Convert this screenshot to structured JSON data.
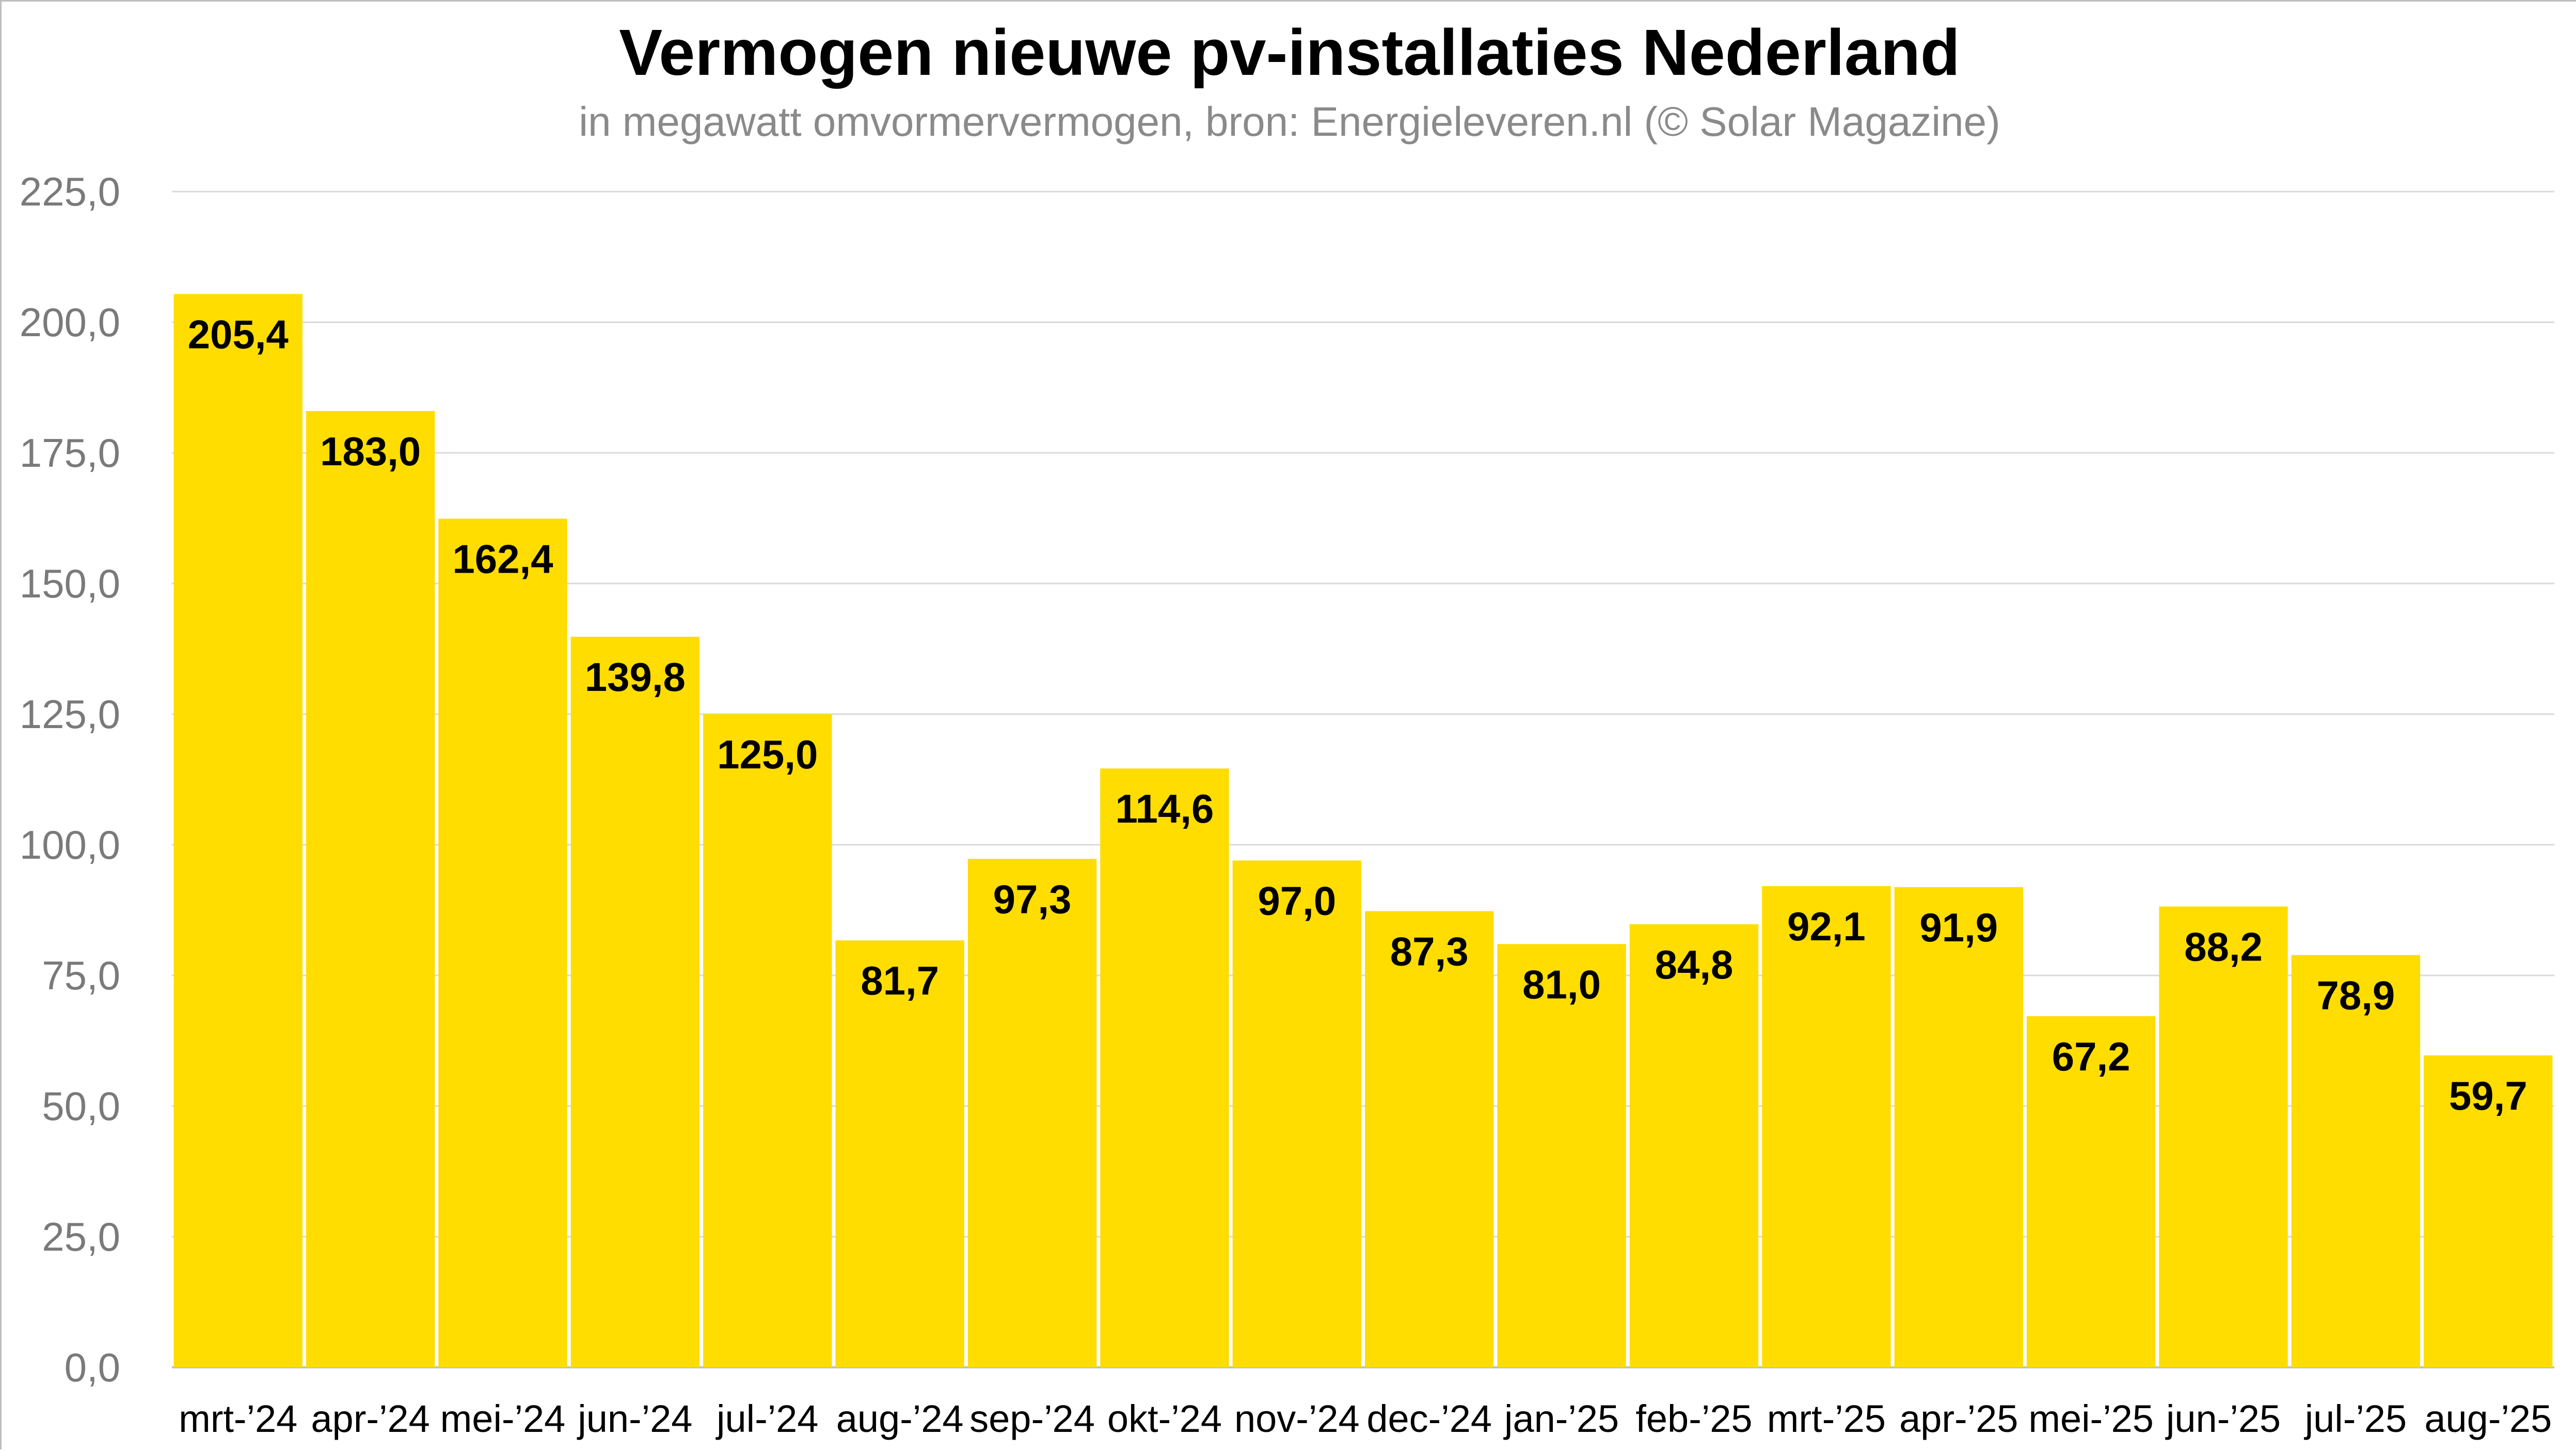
{
  "colors": {
    "bar": "#FFDD00",
    "background": "#FFFFFF",
    "grid": "#D9D9D9",
    "title": "#000000",
    "subtitle": "#8A8A8A",
    "axis_text": "#7A7A7A"
  },
  "chart_data": {
    "type": "bar",
    "title": "Vermogen nieuwe pv-installaties Nederland",
    "subtitle": "in megawatt omvormervermogen, bron: Energieleveren.nl (© Solar Magazine)",
    "xlabel": "",
    "ylabel": "",
    "ylim": [
      0,
      225
    ],
    "yticks": [
      0,
      25,
      50,
      75,
      100,
      125,
      150,
      175,
      200,
      225
    ],
    "ytick_labels": [
      "0,0",
      "25,0",
      "50,0",
      "75,0",
      "100,0",
      "125,0",
      "150,0",
      "175,0",
      "200,0",
      "225,0"
    ],
    "grid": true,
    "legend": "none",
    "categories": [
      "mrt-’24",
      "apr-’24",
      "mei-’24",
      "jun-’24",
      "jul-’24",
      "aug-’24",
      "sep-’24",
      "okt-’24",
      "nov-’24",
      "dec-’24",
      "jan-’25",
      "feb-’25",
      "mrt-’25",
      "apr-’25",
      "mei-’25",
      "jun-’25",
      "jul-’25",
      "aug-’25"
    ],
    "values": [
      205.4,
      183.0,
      162.4,
      139.8,
      125.0,
      81.7,
      97.3,
      114.6,
      97.0,
      87.3,
      81.0,
      84.8,
      92.1,
      91.9,
      67.2,
      88.2,
      78.9,
      59.7
    ],
    "value_labels": [
      "205,4",
      "183,0",
      "162,4",
      "139,8",
      "125,0",
      "81,7",
      "97,3",
      "114,6",
      "97,0",
      "87,3",
      "81,0",
      "84,8",
      "92,1",
      "91,9",
      "67,2",
      "88,2",
      "78,9",
      "59,7"
    ]
  }
}
